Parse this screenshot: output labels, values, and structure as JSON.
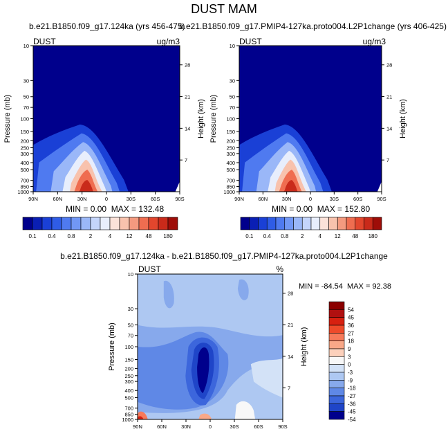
{
  "page": {
    "title": "DUST MAM"
  },
  "chart_data": [
    {
      "type": "heatmap",
      "title": "b.e21.B1850.f09_g17.124ka (yrs 456-475)",
      "left_label": "DUST",
      "right_label": "ug/m3",
      "ylabel": "Pressure (mb)",
      "ylabel_right": "Height (km)",
      "x_ticks": [
        "90N",
        "60N",
        "30N",
        "0",
        "30S",
        "60S",
        "90S"
      ],
      "y_ticks": [
        "10",
        "30",
        "50",
        "70",
        "100",
        "150",
        "200",
        "250",
        "300",
        "400",
        "500",
        "700",
        "850",
        "1000"
      ],
      "y_ticks_right": [
        "28",
        "21",
        "14",
        "7"
      ],
      "stats": {
        "min_label": "MIN =",
        "min": "0.00",
        "max_label": "MAX =",
        "max": "132.48"
      },
      "colorbar": {
        "labels": [
          "0.1",
          "0.4",
          "0.8",
          "2",
          "4",
          "12",
          "48",
          "180"
        ]
      }
    },
    {
      "type": "heatmap",
      "title": "b.e21.B1850.f09_g17.PMIP4-127ka.proto004.L2P1change (yrs 406-425)",
      "left_label": "DUST",
      "right_label": "ug/m3",
      "ylabel": "Pressure (mb)",
      "ylabel_right": "Height (km)",
      "x_ticks": [
        "90N",
        "60N",
        "30N",
        "0",
        "30S",
        "60S",
        "90S"
      ],
      "y_ticks": [
        "10",
        "30",
        "50",
        "70",
        "100",
        "150",
        "200",
        "250",
        "300",
        "400",
        "500",
        "700",
        "850",
        "1000"
      ],
      "y_ticks_right": [
        "28",
        "21",
        "14",
        "7"
      ],
      "stats": {
        "min_label": "MIN =",
        "min": "0.00",
        "max_label": "MAX =",
        "max": "152.80"
      },
      "colorbar": {
        "labels": [
          "0.1",
          "0.4",
          "0.8",
          "2",
          "4",
          "12",
          "48",
          "180"
        ]
      }
    },
    {
      "type": "heatmap",
      "title": "b.e21.B1850.f09_g17.124ka - b.e21.B1850.f09_g17.PMIP4-127ka.proto004.L2P1change",
      "left_label": "DUST",
      "right_label": "%",
      "ylabel": "Pressure (mb)",
      "ylabel_right": "Height (km)",
      "x_ticks": [
        "90N",
        "60N",
        "30N",
        "0",
        "30S",
        "60S",
        "90S"
      ],
      "y_ticks": [
        "10",
        "30",
        "50",
        "70",
        "100",
        "150",
        "200",
        "250",
        "300",
        "400",
        "500",
        "700",
        "850",
        "1000"
      ],
      "y_ticks_right": [
        "28",
        "21",
        "14",
        "7"
      ],
      "stats": {
        "min_label": "MIN =",
        "min": "-84.54",
        "max_label": "MAX =",
        "max": "92.38"
      },
      "colorbar": {
        "labels": [
          "54",
          "45",
          "36",
          "27",
          "18",
          "9",
          "3",
          "0",
          "-3",
          "-9",
          "-18",
          "-27",
          "-36",
          "-45",
          "-54"
        ]
      }
    }
  ],
  "colors": {
    "seq": [
      "#00008c",
      "#0a1fb4",
      "#1a40d6",
      "#2f5ce6",
      "#4f7af0",
      "#7197f5",
      "#9ab7f8",
      "#c4d5fb",
      "#e8eefc",
      "#fbe2d9",
      "#f8c2ad",
      "#f49a7f",
      "#ef6d50",
      "#e2462d",
      "#c92a1a",
      "#9e0d08"
    ],
    "div": [
      "#8b0000",
      "#b01010",
      "#d72010",
      "#ee4a2a",
      "#f77a5a",
      "#f9a888",
      "#fcd0bb",
      "#f8f8f8",
      "#d3e2f7",
      "#aec8f2",
      "#87a9ec",
      "#5f88e6",
      "#3c66dc",
      "#1f45c8",
      "#00008c"
    ]
  }
}
